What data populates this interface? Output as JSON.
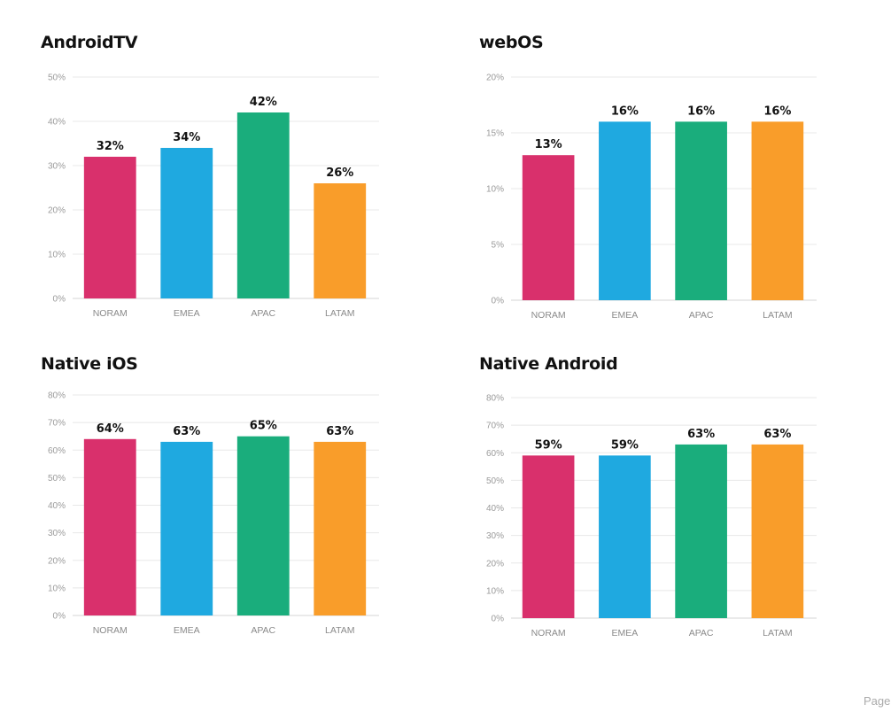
{
  "colors": {
    "NORAM": "#d9306c",
    "EMEA": "#1fa9e0",
    "APAC": "#1aad7c",
    "LATAM": "#f99d2a"
  },
  "page_label": "Page",
  "chart_data": [
    {
      "type": "bar",
      "title": "AndroidTV",
      "categories": [
        "NORAM",
        "EMEA",
        "APAC",
        "LATAM"
      ],
      "values": [
        32,
        34,
        42,
        26
      ],
      "value_labels": [
        "32%",
        "34%",
        "42%",
        "26%"
      ],
      "ylim": [
        0,
        50
      ],
      "yticks": [
        0,
        10,
        20,
        30,
        40,
        50
      ],
      "ytick_labels": [
        "0%",
        "10%",
        "20%",
        "30%",
        "40%",
        "50%"
      ],
      "grid": true
    },
    {
      "type": "bar",
      "title": "webOS",
      "categories": [
        "NORAM",
        "EMEA",
        "APAC",
        "LATAM"
      ],
      "values": [
        13,
        16,
        16,
        16
      ],
      "value_labels": [
        "13%",
        "16%",
        "16%",
        "16%"
      ],
      "ylim": [
        0,
        20
      ],
      "yticks": [
        0,
        5,
        10,
        15,
        20
      ],
      "ytick_labels": [
        "0%",
        "5%",
        "10%",
        "15%",
        "20%"
      ],
      "grid": true
    },
    {
      "type": "bar",
      "title": "Native iOS",
      "categories": [
        "NORAM",
        "EMEA",
        "APAC",
        "LATAM"
      ],
      "values": [
        64,
        63,
        65,
        63
      ],
      "value_labels": [
        "64%",
        "63%",
        "65%",
        "63%"
      ],
      "ylim": [
        0,
        80
      ],
      "yticks": [
        0,
        10,
        20,
        30,
        40,
        50,
        60,
        70,
        80
      ],
      "ytick_labels": [
        "0%",
        "10%",
        "20%",
        "30%",
        "40%",
        "50%",
        "60%",
        "70%",
        "80%"
      ],
      "grid": true
    },
    {
      "type": "bar",
      "title": "Native Android",
      "categories": [
        "NORAM",
        "EMEA",
        "APAC",
        "LATAM"
      ],
      "values": [
        59,
        59,
        63,
        63
      ],
      "value_labels": [
        "59%",
        "59%",
        "63%",
        "63%"
      ],
      "ylim": [
        0,
        80
      ],
      "yticks": [
        0,
        10,
        20,
        30,
        40,
        50,
        60,
        70,
        80
      ],
      "ytick_labels": [
        "0%",
        "10%",
        "20%",
        "30%",
        "40%",
        "50%",
        "60%",
        "70%",
        "80%"
      ],
      "grid": true
    }
  ]
}
